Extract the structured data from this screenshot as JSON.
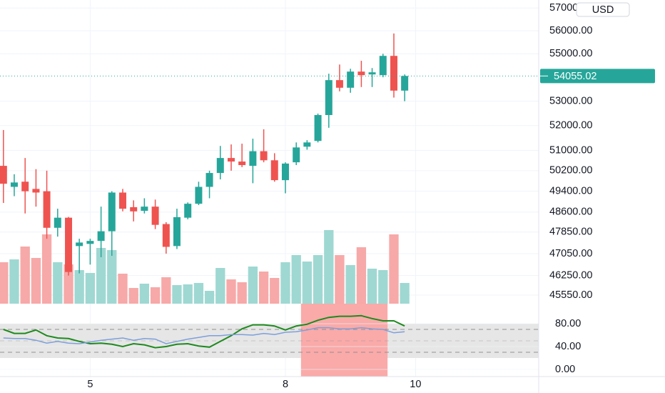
{
  "chart_data": [
    {
      "type": "candlestick",
      "log_scale": true,
      "grid": true,
      "currency": "USD",
      "up_color": "#26a69a",
      "down_color": "#ef5350",
      "volume_up_color": "#9fd8d2",
      "volume_down_color": "#f6a9a8",
      "x": [
        3.667,
        3.833,
        4,
        4.167,
        4.333,
        4.5,
        4.667,
        4.833,
        5,
        5.167,
        5.333,
        5.5,
        5.667,
        5.833,
        6,
        6.167,
        6.333,
        6.5,
        6.667,
        6.833,
        7,
        7.167,
        7.333,
        7.5,
        7.667,
        7.833,
        8,
        8.167,
        8.333,
        8.5,
        8.667,
        8.833,
        9,
        9.167,
        9.333,
        9.5,
        9.667,
        9.833
      ],
      "open": [
        50390,
        49570,
        49770,
        49490,
        49400,
        48010,
        48390,
        47330,
        47410,
        47520,
        47880,
        49350,
        48790,
        48650,
        48810,
        48150,
        47330,
        48390,
        48920,
        49570,
        50110,
        50700,
        50560,
        50390,
        50970,
        50610,
        49830,
        50530,
        51150,
        51380,
        52430,
        53880,
        53560,
        54240,
        54120,
        54090,
        54910,
        53440
      ],
      "high": [
        51820,
        50060,
        50700,
        50260,
        50200,
        48730,
        48420,
        47600,
        47600,
        48810,
        49400,
        49490,
        49050,
        49130,
        49080,
        48220,
        48730,
        48970,
        49770,
        50200,
        51180,
        51240,
        51270,
        51470,
        51850,
        50890,
        50530,
        51320,
        51410,
        52490,
        54150,
        54540,
        54360,
        54700,
        54390,
        55000,
        55880,
        54120
      ],
      "low": [
        48950,
        49210,
        48550,
        48810,
        47600,
        47680,
        46250,
        46330,
        46650,
        46920,
        46970,
        48630,
        48250,
        48550,
        47960,
        47050,
        47220,
        48330,
        48870,
        49130,
        49860,
        50200,
        50340,
        49710,
        50530,
        49770,
        49320,
        50420,
        51030,
        51320,
        51910,
        53410,
        53350,
        53590,
        53590,
        54000,
        53150,
        53000
      ],
      "close": [
        49690,
        49740,
        49400,
        49350,
        48010,
        48390,
        46380,
        47460,
        47520,
        47880,
        49350,
        48730,
        48630,
        48810,
        48120,
        47300,
        48410,
        48920,
        49570,
        50110,
        50700,
        50560,
        50420,
        50970,
        50610,
        49830,
        50480,
        51120,
        51320,
        52430,
        53880,
        53560,
        54240,
        54090,
        54210,
        54910,
        53440,
        54055.02
      ],
      "volume": [
        58,
        62,
        80,
        64,
        97,
        58,
        55,
        47,
        43,
        78,
        75,
        42,
        22,
        28,
        23,
        37,
        26,
        27,
        29,
        18,
        50,
        34,
        30,
        52,
        45,
        36,
        58,
        68,
        59,
        68,
        103,
        68,
        54,
        79,
        49,
        47,
        97,
        29
      ],
      "volume_lim": [
        0,
        425
      ],
      "xlim": [
        3.614,
        11.893
      ],
      "xticks": [
        5,
        8,
        10
      ],
      "ylim": [
        45246,
        57360
      ],
      "yticks": [
        {
          "value": 45550,
          "label": "45550.00"
        },
        {
          "value": 46250,
          "label": "46250.00"
        },
        {
          "value": 47050,
          "label": "47050.00"
        },
        {
          "value": 47850,
          "label": "47850.00"
        },
        {
          "value": 48600,
          "label": "48600.00"
        },
        {
          "value": 49400,
          "label": "49400.00"
        },
        {
          "value": 50200,
          "label": "50200.00"
        },
        {
          "value": 51000,
          "label": "51000.00"
        },
        {
          "value": 52000,
          "label": "52000.00"
        },
        {
          "value": 53000,
          "label": "53000.00"
        },
        {
          "value": 55000,
          "label": "55000.00"
        },
        {
          "value": 56000,
          "label": "56000.00"
        },
        {
          "value": 57000,
          "label": "57000.00"
        }
      ]
    },
    {
      "type": "line",
      "grid": true,
      "x": [
        3.667,
        3.833,
        4,
        4.167,
        4.333,
        4.5,
        4.667,
        4.833,
        5,
        5.167,
        5.333,
        5.5,
        5.667,
        5.833,
        6,
        6.167,
        6.333,
        6.5,
        6.667,
        6.833,
        7,
        7.167,
        7.333,
        7.5,
        7.667,
        7.833,
        8,
        8.167,
        8.333,
        8.5,
        8.667,
        8.833,
        9,
        9.167,
        9.333,
        9.5,
        9.667,
        9.833
      ],
      "series": [
        {
          "color": "#1e8a1e",
          "values": [
            70,
            63,
            63,
            69,
            59,
            55,
            54,
            49,
            45,
            46,
            44,
            40,
            45,
            43,
            38,
            40,
            44,
            45,
            41,
            39,
            49,
            59,
            71,
            78,
            78,
            76,
            69,
            76,
            79,
            86,
            91,
            93,
            93,
            94,
            89,
            85,
            85,
            76
          ]
        },
        {
          "color": "#7d9fdb",
          "values": [
            55,
            54,
            54,
            51,
            46,
            49,
            46,
            45,
            48,
            51,
            53,
            55,
            51,
            54,
            53,
            45,
            49,
            53,
            56,
            59,
            59,
            61,
            61,
            60,
            63,
            61,
            65,
            66,
            69,
            73,
            73,
            71,
            71,
            73,
            71,
            70,
            64,
            66
          ]
        }
      ],
      "levels": [
        30,
        50,
        70
      ],
      "band": [
        20,
        80
      ],
      "highlight_x": [
        8.24,
        9.57
      ],
      "highlight_color": "#f9aaa9",
      "ylim": [
        -12.5,
        115
      ],
      "yticks": [
        {
          "value": 0,
          "label": "0.00"
        },
        {
          "value": 40,
          "label": "40.00"
        },
        {
          "value": 80,
          "label": "80.00"
        }
      ]
    }
  ]
}
